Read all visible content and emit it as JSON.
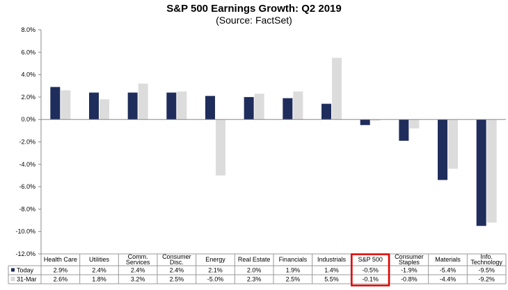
{
  "chart_data": {
    "type": "bar",
    "title": "S&P 500 Earnings Growth: Q2 2019",
    "subtitle": "(Source: FactSet)",
    "categories": [
      [
        "Health Care"
      ],
      [
        "Utilities"
      ],
      [
        "Comm.",
        "Services"
      ],
      [
        "Consumer",
        "Disc."
      ],
      [
        "Energy"
      ],
      [
        "Real Estate"
      ],
      [
        "Financials"
      ],
      [
        "Industrials"
      ],
      [
        "S&P 500"
      ],
      [
        "Consumer",
        "Staples"
      ],
      [
        "Materials"
      ],
      [
        "Info.",
        "Technology"
      ]
    ],
    "series": [
      {
        "name": "Today",
        "color": "#1f2d5c",
        "values": [
          2.9,
          2.4,
          2.4,
          2.4,
          2.1,
          2.0,
          1.9,
          1.4,
          -0.5,
          -1.9,
          -5.4,
          -9.5
        ],
        "labels": [
          "2.9%",
          "2.4%",
          "2.4%",
          "2.4%",
          "2.1%",
          "2.0%",
          "1.9%",
          "1.4%",
          "-0.5%",
          "-1.9%",
          "-5.4%",
          "-9.5%"
        ]
      },
      {
        "name": "31-Mar",
        "color": "#dcdcdc",
        "values": [
          2.6,
          1.8,
          3.2,
          2.5,
          -5.0,
          2.3,
          2.5,
          5.5,
          -0.1,
          -0.8,
          -4.4,
          -9.2
        ],
        "labels": [
          "2.6%",
          "1.8%",
          "3.2%",
          "2.5%",
          "-5.0%",
          "2.3%",
          "2.5%",
          "5.5%",
          "-0.1%",
          "-0.8%",
          "-4.4%",
          "-9.2%"
        ]
      }
    ],
    "yticks": [
      "8.0%",
      "6.0%",
      "4.0%",
      "2.0%",
      "0.0%",
      "-2.0%",
      "-4.0%",
      "-6.0%",
      "-8.0%",
      "-10.0%",
      "-12.0%"
    ],
    "ylim": [
      -12,
      8
    ],
    "grid": false,
    "legend": "data-table-rows",
    "highlight_category": "S&P 500",
    "highlight_color": "#e00000"
  }
}
